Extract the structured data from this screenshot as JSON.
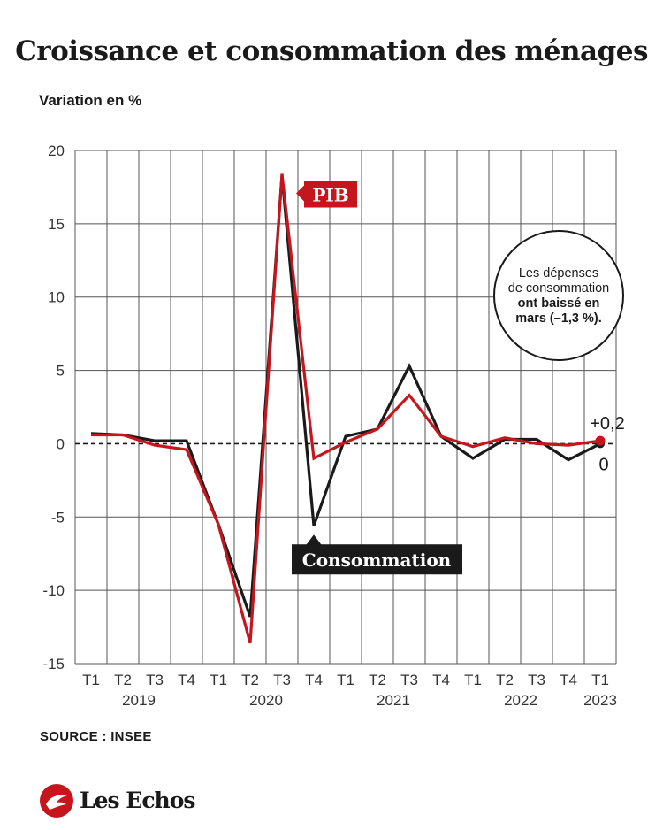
{
  "chart_data": {
    "type": "line",
    "title": "Croissance et consommation des ménages",
    "ylabel": "Variation en %",
    "ylim": [
      -15,
      20
    ],
    "yticks": [
      "20",
      "15",
      "10",
      "5",
      "0",
      "-5",
      "-10",
      "-15"
    ],
    "quarters": [
      "T1",
      "T2",
      "T3",
      "T4",
      "T1",
      "T2",
      "T3",
      "T4",
      "T1",
      "T2",
      "T3",
      "T4",
      "T1",
      "T2",
      "T3",
      "T4",
      "T1"
    ],
    "years": [
      {
        "label": "2019",
        "quarter_index": 1.5
      },
      {
        "label": "2020",
        "quarter_index": 5.5
      },
      {
        "label": "2021",
        "quarter_index": 9.5
      },
      {
        "label": "2022",
        "quarter_index": 13.5
      },
      {
        "label": "2023",
        "quarter_index": 16
      }
    ],
    "series": [
      {
        "name": "Consommation",
        "color": "#1a1a1a",
        "values": [
          0.7,
          0.6,
          0.2,
          0.2,
          -5.5,
          -11.8,
          18.3,
          -5.6,
          0.5,
          1.0,
          5.3,
          0.5,
          -1.0,
          0.3,
          0.3,
          -1.1,
          0.0
        ]
      },
      {
        "name": "PIB",
        "color": "#c4161c",
        "values": [
          0.6,
          0.6,
          -0.1,
          -0.4,
          -5.5,
          -13.6,
          18.4,
          -1.0,
          0.1,
          1.0,
          3.3,
          0.5,
          -0.2,
          0.4,
          0.0,
          -0.1,
          0.2
        ]
      }
    ],
    "end_labels": {
      "pib": "+0,2",
      "consommation": "0"
    },
    "annotation": {
      "line1": "Les dépenses",
      "line2": "de consommation",
      "line3": "ont baissé en",
      "line4": "mars (–1,3 %)."
    },
    "grid": true
  },
  "footer": {
    "source": "SOURCE : INSEE",
    "brand": "Les Echos"
  },
  "colors": {
    "pib": "#c4161c",
    "consommation": "#1a1a1a",
    "grid": "#555555"
  }
}
